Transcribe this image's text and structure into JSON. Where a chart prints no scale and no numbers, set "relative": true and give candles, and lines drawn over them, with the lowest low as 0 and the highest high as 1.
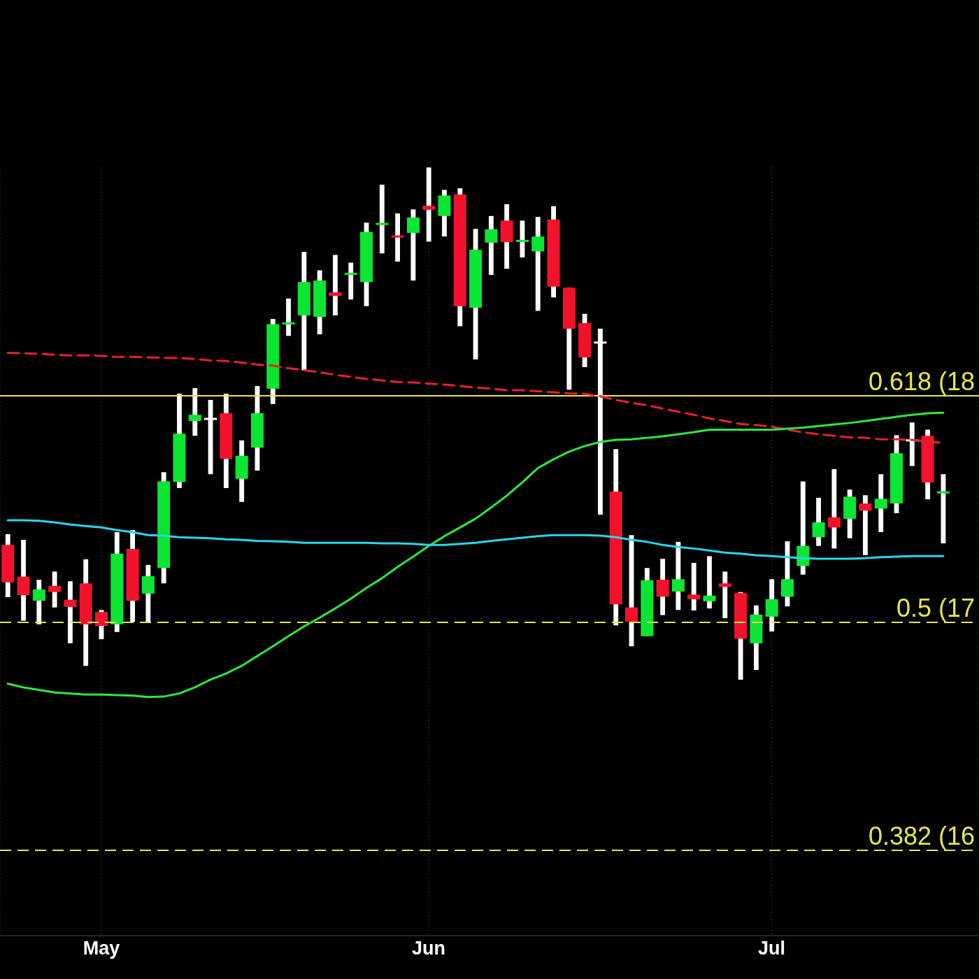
{
  "chart_data": {
    "type": "candlestick",
    "relative": true,
    "categories": [
      null,
      null,
      null,
      null,
      null,
      null,
      "May",
      null,
      null,
      null,
      null,
      null,
      null,
      null,
      null,
      null,
      null,
      null,
      null,
      null,
      null,
      null,
      null,
      null,
      null,
      null,
      null,
      "Jun",
      null,
      null,
      null,
      null,
      null,
      null,
      null,
      null,
      null,
      null,
      null,
      null,
      null,
      null,
      null,
      null,
      null,
      null,
      null,
      null,
      null,
      "Jul",
      null,
      null,
      null,
      null,
      null,
      null,
      null,
      null,
      null,
      null,
      null
    ],
    "ohlc": [
      [
        0.263,
        0.284,
        0.161,
        0.19
      ],
      [
        0.201,
        0.273,
        0.115,
        0.165
      ],
      [
        0.154,
        0.195,
        0.108,
        0.176
      ],
      [
        0.183,
        0.211,
        0.141,
        0.171
      ],
      [
        0.156,
        0.192,
        0.071,
        0.142
      ],
      [
        0.188,
        0.235,
        0.027,
        0.108
      ],
      [
        0.132,
        0.136,
        0.079,
        0.105
      ],
      [
        0.108,
        0.288,
        0.093,
        0.246
      ],
      [
        0.255,
        0.292,
        0.113,
        0.154
      ],
      [
        0.168,
        0.224,
        0.113,
        0.202
      ],
      [
        0.218,
        0.405,
        0.188,
        0.387
      ],
      [
        0.386,
        0.558,
        0.374,
        0.48
      ],
      [
        0.505,
        0.569,
        0.476,
        0.517
      ],
      [
        0.509,
        0.546,
        0.401,
        0.509
      ],
      [
        0.52,
        0.558,
        0.374,
        0.431
      ],
      [
        0.392,
        0.467,
        0.347,
        0.437
      ],
      [
        0.453,
        0.573,
        0.408,
        0.52
      ],
      [
        0.568,
        0.704,
        0.538,
        0.694
      ],
      [
        0.694,
        0.744,
        0.671,
        0.697
      ],
      [
        0.711,
        0.835,
        0.604,
        0.776
      ],
      [
        0.708,
        0.799,
        0.674,
        0.779
      ],
      [
        0.756,
        0.829,
        0.711,
        0.749
      ],
      [
        0.79,
        0.814,
        0.742,
        0.794
      ],
      [
        0.776,
        0.892,
        0.729,
        0.874
      ],
      [
        0.888,
        0.966,
        0.832,
        0.891
      ],
      [
        0.866,
        0.91,
        0.816,
        0.864
      ],
      [
        0.872,
        0.918,
        0.779,
        0.902
      ],
      [
        0.925,
        1,
        0.855,
        0.917
      ],
      [
        0.905,
        0.956,
        0.865,
        0.945
      ],
      [
        0.947,
        0.959,
        0.69,
        0.729
      ],
      [
        0.726,
        0.88,
        0.625,
        0.839
      ],
      [
        0.853,
        0.905,
        0.79,
        0.879
      ],
      [
        0.896,
        0.928,
        0.802,
        0.854
      ],
      [
        0.855,
        0.896,
        0.824,
        0.858
      ],
      [
        0.836,
        0.903,
        0.72,
        0.865
      ],
      [
        0.898,
        0.924,
        0.746,
        0.767
      ],
      [
        0.765,
        0.765,
        0.566,
        0.685
      ],
      [
        0.696,
        0.714,
        0.61,
        0.629
      ],
      [
        0.658,
        0.685,
        0.322,
        0.658
      ],
      [
        0.367,
        0.45,
        0.106,
        0.147
      ],
      [
        0.141,
        0.282,
        0.065,
        0.113
      ],
      [
        0.085,
        0.218,
        0.085,
        0.194
      ],
      [
        0.195,
        0.236,
        0.126,
        0.162
      ],
      [
        0.172,
        0.269,
        0.136,
        0.196
      ],
      [
        0.166,
        0.228,
        0.135,
        0.157
      ],
      [
        0.153,
        0.241,
        0.139,
        0.164
      ],
      [
        0.188,
        0.211,
        0.12,
        0.181
      ],
      [
        0.169,
        0.171,
        0,
        0.08
      ],
      [
        0.071,
        0.145,
        0.019,
        0.127
      ],
      [
        0.123,
        0.196,
        0.094,
        0.157
      ],
      [
        0.162,
        0.27,
        0.143,
        0.196
      ],
      [
        0.222,
        0.387,
        0.205,
        0.261
      ],
      [
        0.278,
        0.355,
        0.261,
        0.307
      ],
      [
        0.317,
        0.411,
        0.256,
        0.297
      ],
      [
        0.314,
        0.371,
        0.276,
        0.357
      ],
      [
        0.344,
        0.36,
        0.243,
        0.33
      ],
      [
        0.334,
        0.401,
        0.288,
        0.353
      ],
      [
        0.344,
        0.477,
        0.325,
        0.442
      ],
      [
        0.467,
        0.502,
        0.417,
        0.467
      ],
      [
        0.476,
        0.488,
        0.352,
        0.385
      ],
      [
        0.364,
        0.401,
        0.266,
        0.367
      ]
    ],
    "colors": [
      "#f2122c",
      "#f2122c",
      "#0be632",
      "#f2122c",
      "#f2122c",
      "#f2122c",
      "#f2122c",
      "#0be632",
      "#f2122c",
      "#0be632",
      "#0be632",
      "#0be632",
      "#0be632",
      "#ffffff",
      "#f2122c",
      "#0be632",
      "#0be632",
      "#0be632",
      "#0be632",
      "#0be632",
      "#0be632",
      "#f2122c",
      "#0be632",
      "#0be632",
      "#0be632",
      "#f2122c",
      "#0be632",
      "#f2122c",
      "#0be632",
      "#f2122c",
      "#0be632",
      "#0be632",
      "#f2122c",
      "#0be632",
      "#0be632",
      "#f2122c",
      "#f2122c",
      "#f2122c",
      "#ffffff",
      "#f2122c",
      "#f2122c",
      "#0be632",
      "#f2122c",
      "#0be632",
      "#f2122c",
      "#0be632",
      "#f2122c",
      "#f2122c",
      "#0be632",
      "#0be632",
      "#0be632",
      "#0be632",
      "#0be632",
      "#f2122c",
      "#0be632",
      "#f2122c",
      "#0be632",
      "#0be632",
      "#ffffff",
      "#f2122c",
      "#0be632"
    ],
    "series": [
      {
        "type": "line",
        "color": "#e8202e",
        "line_style": "dashed",
        "values": [
          0.638,
          0.637,
          0.636,
          0.634,
          0.633,
          0.633,
          0.632,
          0.63,
          0.63,
          0.629,
          0.628,
          0.628,
          0.626,
          0.623,
          0.622,
          0.619,
          0.615,
          0.613,
          0.608,
          0.604,
          0.6,
          0.595,
          0.591,
          0.587,
          0.584,
          0.581,
          0.58,
          0.578,
          0.576,
          0.573,
          0.57,
          0.568,
          0.565,
          0.565,
          0.563,
          0.561,
          0.559,
          0.558,
          0.553,
          0.546,
          0.54,
          0.536,
          0.529,
          0.523,
          0.517,
          0.51,
          0.505,
          0.499,
          0.497,
          0.494,
          0.488,
          0.483,
          0.479,
          0.476,
          0.473,
          0.472,
          0.469,
          0.469,
          0.468,
          0.465,
          0.462
        ]
      },
      {
        "type": "line",
        "color": "#2ee83c",
        "values": [
          -0.008,
          -0.015,
          -0.02,
          -0.025,
          -0.027,
          -0.029,
          -0.029,
          -0.03,
          -0.031,
          -0.034,
          -0.033,
          -0.027,
          -0.015,
          0,
          0.012,
          0.027,
          0.046,
          0.065,
          0.085,
          0.104,
          0.121,
          0.139,
          0.158,
          0.179,
          0.198,
          0.22,
          0.24,
          0.261,
          0.28,
          0.297,
          0.314,
          0.336,
          0.359,
          0.385,
          0.413,
          0.43,
          0.445,
          0.456,
          0.464,
          0.468,
          0.469,
          0.472,
          0.475,
          0.479,
          0.483,
          0.488,
          0.488,
          0.488,
          0.488,
          0.488,
          0.49,
          0.492,
          0.495,
          0.498,
          0.501,
          0.505,
          0.509,
          0.513,
          0.517,
          0.52,
          0.521
        ]
      },
      {
        "type": "line",
        "color": "#27d6ee",
        "values": [
          0.311,
          0.311,
          0.31,
          0.307,
          0.303,
          0.3,
          0.297,
          0.292,
          0.288,
          0.282,
          0.281,
          0.278,
          0.277,
          0.276,
          0.274,
          0.273,
          0.271,
          0.27,
          0.269,
          0.267,
          0.267,
          0.267,
          0.267,
          0.267,
          0.266,
          0.266,
          0.265,
          0.263,
          0.263,
          0.265,
          0.267,
          0.271,
          0.274,
          0.277,
          0.28,
          0.282,
          0.282,
          0.282,
          0.281,
          0.278,
          0.273,
          0.269,
          0.263,
          0.259,
          0.256,
          0.252,
          0.248,
          0.246,
          0.243,
          0.241,
          0.239,
          0.237,
          0.236,
          0.236,
          0.236,
          0.237,
          0.239,
          0.24,
          0.241,
          0.241,
          0.241
        ]
      }
    ],
    "ref_lines": [
      {
        "axis": "y",
        "value": 0.554,
        "color": "#e6e650",
        "line_style": "solid"
      },
      {
        "axis": "y",
        "value": 0.112,
        "color": "#e6e650",
        "line_style": "dashed"
      },
      {
        "axis": "y",
        "value": -0.333,
        "color": "#e6e650",
        "line_style": "dashed"
      }
    ],
    "annotations": [
      {
        "text": "0.618 (18",
        "y": 0.554
      },
      {
        "text": "0.5 (17",
        "y": 0.112
      },
      {
        "text": "0.382 (16",
        "y": -0.333
      }
    ],
    "grid": "x"
  }
}
